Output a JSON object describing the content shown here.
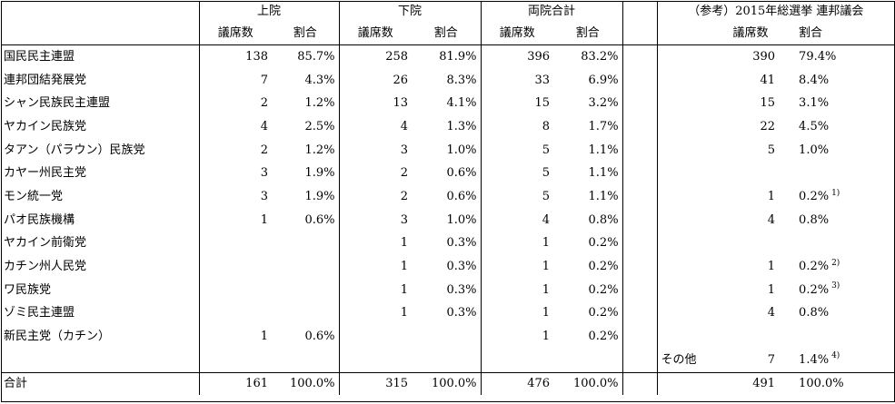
{
  "header": {
    "upper": "上院",
    "lower": "下院",
    "both": "両院合計",
    "ref": "（参考）2015年総選挙 連邦議会",
    "seats": "議席数",
    "ratio": "割合"
  },
  "rows": [
    {
      "party": "国民民主連盟",
      "u_seats": "138",
      "u_ratio": "85.7%",
      "l_seats": "258",
      "l_ratio": "81.9%",
      "t_seats": "396",
      "t_ratio": "83.2%",
      "r_label": "",
      "r_seats": "390",
      "r_ratio": "79.4%",
      "r_note": ""
    },
    {
      "party": "連邦団結発展党",
      "u_seats": "7",
      "u_ratio": "4.3%",
      "l_seats": "26",
      "l_ratio": "8.3%",
      "t_seats": "33",
      "t_ratio": "6.9%",
      "r_label": "",
      "r_seats": "41",
      "r_ratio": "8.4%",
      "r_note": ""
    },
    {
      "party": "シャン民族民主連盟",
      "u_seats": "2",
      "u_ratio": "1.2%",
      "l_seats": "13",
      "l_ratio": "4.1%",
      "t_seats": "15",
      "t_ratio": "3.2%",
      "r_label": "",
      "r_seats": "15",
      "r_ratio": "3.1%",
      "r_note": ""
    },
    {
      "party": "ヤカイン民族党",
      "u_seats": "4",
      "u_ratio": "2.5%",
      "l_seats": "4",
      "l_ratio": "1.3%",
      "t_seats": "8",
      "t_ratio": "1.7%",
      "r_label": "",
      "r_seats": "22",
      "r_ratio": "4.5%",
      "r_note": ""
    },
    {
      "party": "タアン（パラウン）民族党",
      "u_seats": "2",
      "u_ratio": "1.2%",
      "l_seats": "3",
      "l_ratio": "1.0%",
      "t_seats": "5",
      "t_ratio": "1.1%",
      "r_label": "",
      "r_seats": "5",
      "r_ratio": "1.0%",
      "r_note": ""
    },
    {
      "party": "カヤー州民主党",
      "u_seats": "3",
      "u_ratio": "1.9%",
      "l_seats": "2",
      "l_ratio": "0.6%",
      "t_seats": "5",
      "t_ratio": "1.1%",
      "r_label": "",
      "r_seats": "",
      "r_ratio": "",
      "r_note": ""
    },
    {
      "party": "モン統一党",
      "u_seats": "3",
      "u_ratio": "1.9%",
      "l_seats": "2",
      "l_ratio": "0.6%",
      "t_seats": "5",
      "t_ratio": "1.1%",
      "r_label": "",
      "r_seats": "1",
      "r_ratio": "0.2%",
      "r_note": "1)"
    },
    {
      "party": "パオ民族機構",
      "u_seats": "1",
      "u_ratio": "0.6%",
      "l_seats": "3",
      "l_ratio": "1.0%",
      "t_seats": "4",
      "t_ratio": "0.8%",
      "r_label": "",
      "r_seats": "4",
      "r_ratio": "0.8%",
      "r_note": ""
    },
    {
      "party": "ヤカイン前衛党",
      "u_seats": "",
      "u_ratio": "",
      "l_seats": "1",
      "l_ratio": "0.3%",
      "t_seats": "1",
      "t_ratio": "0.2%",
      "r_label": "",
      "r_seats": "",
      "r_ratio": "",
      "r_note": ""
    },
    {
      "party": "カチン州人民党",
      "u_seats": "",
      "u_ratio": "",
      "l_seats": "1",
      "l_ratio": "0.3%",
      "t_seats": "1",
      "t_ratio": "0.2%",
      "r_label": "",
      "r_seats": "1",
      "r_ratio": "0.2%",
      "r_note": "2)"
    },
    {
      "party": "ワ民族党",
      "u_seats": "",
      "u_ratio": "",
      "l_seats": "1",
      "l_ratio": "0.3%",
      "t_seats": "1",
      "t_ratio": "0.2%",
      "r_label": "",
      "r_seats": "1",
      "r_ratio": "0.2%",
      "r_note": "3)"
    },
    {
      "party": "ゾミ民主連盟",
      "u_seats": "",
      "u_ratio": "",
      "l_seats": "1",
      "l_ratio": "0.3%",
      "t_seats": "1",
      "t_ratio": "0.2%",
      "r_label": "",
      "r_seats": "4",
      "r_ratio": "0.8%",
      "r_note": ""
    },
    {
      "party": "新民主党（カチン）",
      "u_seats": "1",
      "u_ratio": "0.6%",
      "l_seats": "",
      "l_ratio": "",
      "t_seats": "1",
      "t_ratio": "0.2%",
      "r_label": "",
      "r_seats": "",
      "r_ratio": "",
      "r_note": ""
    },
    {
      "party": "",
      "u_seats": "",
      "u_ratio": "",
      "l_seats": "",
      "l_ratio": "",
      "t_seats": "",
      "t_ratio": "",
      "r_label": "その他",
      "r_seats": "7",
      "r_ratio": "1.4%",
      "r_note": "4)"
    }
  ],
  "total": {
    "label": "合計",
    "u_seats": "161",
    "u_ratio": "100.0%",
    "l_seats": "315",
    "l_ratio": "100.0%",
    "t_seats": "476",
    "t_ratio": "100.0%",
    "r_seats": "491",
    "r_ratio": "100.0%"
  }
}
